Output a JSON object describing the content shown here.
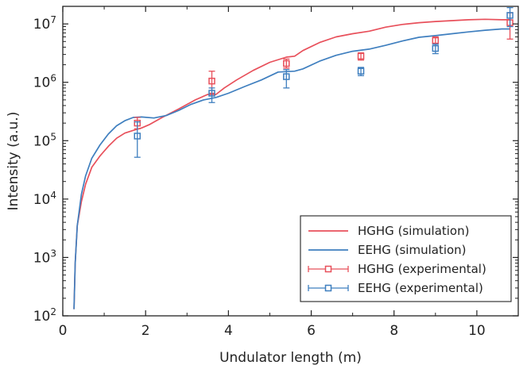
{
  "chart_data": {
    "type": "line",
    "xlabel": "Undulator length (m)",
    "ylabel": "Intensity (a.u.)",
    "xlim": [
      0,
      11
    ],
    "ylim": [
      100,
      20000000
    ],
    "yscale": "log",
    "grid": false,
    "legend_position": "bottom-right",
    "x_ticks": [
      0,
      2,
      4,
      6,
      8,
      10
    ],
    "x_tick_labels": [
      "0",
      "2",
      "4",
      "6",
      "8",
      "10"
    ],
    "y_ticks": [
      100,
      1000,
      10000,
      100000,
      1000000,
      10000000
    ],
    "y_tick_labels": [
      {
        "base": "10",
        "exp": "2"
      },
      {
        "base": "10",
        "exp": "3"
      },
      {
        "base": "10",
        "exp": "4"
      },
      {
        "base": "10",
        "exp": "5"
      },
      {
        "base": "10",
        "exp": "6"
      },
      {
        "base": "10",
        "exp": "7"
      }
    ],
    "series": [
      {
        "name": "HGHG (simulation)",
        "kind": "line",
        "color": "#e8505b",
        "points": [
          [
            0.27,
            130
          ],
          [
            0.3,
            800
          ],
          [
            0.35,
            3500
          ],
          [
            0.45,
            9000
          ],
          [
            0.55,
            18000
          ],
          [
            0.7,
            35000
          ],
          [
            0.9,
            55000
          ],
          [
            1.1,
            80000
          ],
          [
            1.3,
            110000
          ],
          [
            1.5,
            135000
          ],
          [
            1.7,
            150000
          ],
          [
            1.9,
            165000
          ],
          [
            2.1,
            190000
          ],
          [
            2.4,
            250000
          ],
          [
            2.8,
            350000
          ],
          [
            3.2,
            500000
          ],
          [
            3.5,
            620000
          ],
          [
            3.7,
            620000
          ],
          [
            3.9,
            800000
          ],
          [
            4.2,
            1100000
          ],
          [
            4.6,
            1600000
          ],
          [
            5.0,
            2200000
          ],
          [
            5.4,
            2700000
          ],
          [
            5.6,
            2800000
          ],
          [
            5.8,
            3500000
          ],
          [
            6.2,
            4800000
          ],
          [
            6.6,
            6000000
          ],
          [
            7.0,
            6800000
          ],
          [
            7.4,
            7500000
          ],
          [
            7.8,
            8800000
          ],
          [
            8.2,
            9800000
          ],
          [
            8.6,
            10500000
          ],
          [
            9.0,
            11000000
          ],
          [
            9.4,
            11400000
          ],
          [
            9.8,
            11800000
          ],
          [
            10.2,
            12000000
          ],
          [
            10.6,
            11800000
          ],
          [
            10.8,
            11800000
          ]
        ]
      },
      {
        "name": "EEHG (simulation)",
        "kind": "line",
        "color": "#3f7fbf",
        "points": [
          [
            0.27,
            130
          ],
          [
            0.3,
            800
          ],
          [
            0.35,
            3500
          ],
          [
            0.45,
            12000
          ],
          [
            0.55,
            25000
          ],
          [
            0.7,
            50000
          ],
          [
            0.9,
            85000
          ],
          [
            1.1,
            130000
          ],
          [
            1.3,
            180000
          ],
          [
            1.5,
            220000
          ],
          [
            1.7,
            250000
          ],
          [
            1.9,
            255000
          ],
          [
            2.2,
            245000
          ],
          [
            2.5,
            270000
          ],
          [
            2.8,
            330000
          ],
          [
            3.1,
            420000
          ],
          [
            3.4,
            500000
          ],
          [
            3.7,
            550000
          ],
          [
            4.0,
            650000
          ],
          [
            4.4,
            850000
          ],
          [
            4.8,
            1100000
          ],
          [
            5.2,
            1500000
          ],
          [
            5.6,
            1550000
          ],
          [
            5.8,
            1700000
          ],
          [
            6.2,
            2300000
          ],
          [
            6.6,
            2900000
          ],
          [
            7.0,
            3400000
          ],
          [
            7.4,
            3700000
          ],
          [
            7.8,
            4300000
          ],
          [
            8.2,
            5100000
          ],
          [
            8.6,
            5900000
          ],
          [
            9.0,
            6300000
          ],
          [
            9.4,
            6800000
          ],
          [
            9.8,
            7300000
          ],
          [
            10.2,
            7800000
          ],
          [
            10.6,
            8200000
          ],
          [
            10.8,
            8200000
          ]
        ]
      },
      {
        "name": "HGHG (experimental)",
        "kind": "errorbar",
        "color": "#e8505b",
        "points": [
          {
            "x": 1.8,
            "y": 200000,
            "ylo": 160000,
            "yhi": 250000
          },
          {
            "x": 3.6,
            "y": 1050000,
            "ylo": 650000,
            "yhi": 1550000
          },
          {
            "x": 5.4,
            "y": 2100000,
            "ylo": 1750000,
            "yhi": 2500000
          },
          {
            "x": 7.2,
            "y": 2800000,
            "ylo": 2400000,
            "yhi": 3200000
          },
          {
            "x": 9.0,
            "y": 5200000,
            "ylo": 4500000,
            "yhi": 6000000
          },
          {
            "x": 10.8,
            "y": 10500000,
            "ylo": 5500000,
            "yhi": 15500000
          }
        ]
      },
      {
        "name": "EEHG (experimental)",
        "kind": "errorbar",
        "color": "#3f7fbf",
        "points": [
          {
            "x": 1.8,
            "y": 120000,
            "ylo": 52000,
            "yhi": 210000
          },
          {
            "x": 3.6,
            "y": 650000,
            "ylo": 450000,
            "yhi": 800000
          },
          {
            "x": 5.4,
            "y": 1250000,
            "ylo": 800000,
            "yhi": 1650000
          },
          {
            "x": 7.2,
            "y": 1550000,
            "ylo": 1300000,
            "yhi": 1800000
          },
          {
            "x": 9.0,
            "y": 3800000,
            "ylo": 3100000,
            "yhi": 4500000
          },
          {
            "x": 10.8,
            "y": 14000000,
            "ylo": 9000000,
            "yhi": 19000000
          }
        ]
      }
    ]
  }
}
